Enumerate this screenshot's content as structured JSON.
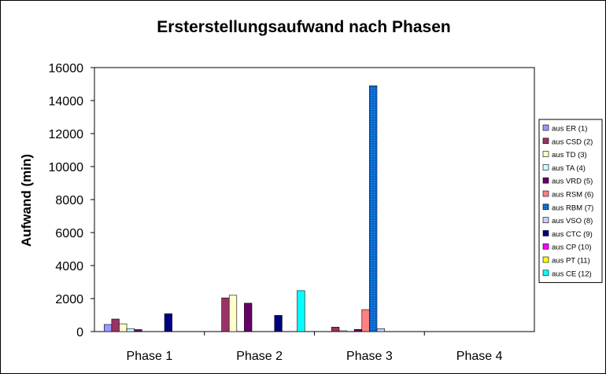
{
  "chart_data": {
    "type": "bar",
    "title": "Ersterstellungsaufwand nach Phasen",
    "xlabel": "",
    "ylabel": "Aufwand (min)",
    "ylim": [
      0,
      16000
    ],
    "yticks": [
      0,
      2000,
      4000,
      6000,
      8000,
      10000,
      12000,
      14000,
      16000
    ],
    "grid": false,
    "legend_position": "right",
    "categories": [
      "Phase 1",
      "Phase 2",
      "Phase 3",
      "Phase 4"
    ],
    "series": [
      {
        "name": "aus ER (1)",
        "color": "#9999ff",
        "values": [
          430,
          0,
          0,
          0
        ]
      },
      {
        "name": "aus CSD (2)",
        "color": "#993366",
        "values": [
          760,
          2040,
          270,
          0
        ]
      },
      {
        "name": "aus TD (3)",
        "color": "#ffffcc",
        "values": [
          470,
          2200,
          50,
          0
        ]
      },
      {
        "name": "aus TA (4)",
        "color": "#ccffff",
        "values": [
          180,
          0,
          0,
          0
        ]
      },
      {
        "name": "aus VRD (5)",
        "color": "#660066",
        "values": [
          120,
          1720,
          130,
          0
        ]
      },
      {
        "name": "aus RSM (6)",
        "color": "#ff8080",
        "values": [
          0,
          0,
          1330,
          0
        ]
      },
      {
        "name": "aus RBM (7)",
        "color": "#0066cc",
        "values": [
          0,
          0,
          14900,
          0
        ]
      },
      {
        "name": "aus VSO (8)",
        "color": "#ccccff",
        "values": [
          0,
          0,
          180,
          0
        ]
      },
      {
        "name": "aus CTC (9)",
        "color": "#000080",
        "values": [
          1080,
          980,
          0,
          0
        ]
      },
      {
        "name": "aus CP (10)",
        "color": "#ff00ff",
        "values": [
          0,
          0,
          0,
          0
        ]
      },
      {
        "name": "aus PT (11)",
        "color": "#ffff00",
        "values": [
          0,
          0,
          0,
          0
        ]
      },
      {
        "name": "aus CE (12)",
        "color": "#00ffff",
        "values": [
          0,
          2480,
          0,
          0
        ]
      }
    ]
  }
}
